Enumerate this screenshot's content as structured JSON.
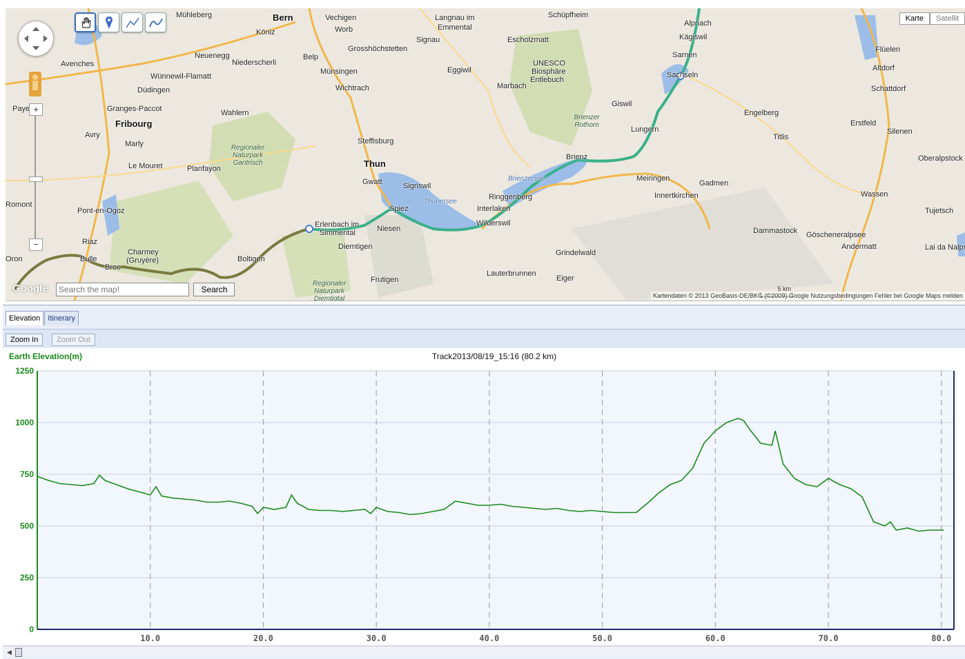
{
  "map": {
    "places": [
      {
        "t": "Bern",
        "cls": "big"
      },
      {
        "t": "Mühleberg"
      },
      {
        "t": "Vechigen"
      },
      {
        "t": "Worb"
      },
      {
        "t": "Köniz"
      },
      {
        "t": "Langnau im"
      },
      {
        "t": "Emmental"
      },
      {
        "t": "Schüpfheim"
      },
      {
        "t": "Alpnach"
      },
      {
        "t": "Kägiswil"
      },
      {
        "t": "Grosshöchstetten"
      },
      {
        "t": "Signau"
      },
      {
        "t": "Escholzmatt"
      },
      {
        "t": "Sarnen"
      },
      {
        "t": "Sachseln"
      },
      {
        "t": "Flüelen"
      },
      {
        "t": "Altdorf"
      },
      {
        "t": "Avenches"
      },
      {
        "t": "Neuenegg"
      },
      {
        "t": "Niederscherli"
      },
      {
        "t": "Belp"
      },
      {
        "t": "Münsingen"
      },
      {
        "t": "Eggiwil"
      },
      {
        "t": "UNESCO"
      },
      {
        "t": "Biosphäre"
      },
      {
        "t": "Entlebuch"
      },
      {
        "t": "Wünnewil-Flamatt"
      },
      {
        "t": "Wichtrach"
      },
      {
        "t": "Marbach"
      },
      {
        "t": "Schattdorf"
      },
      {
        "t": "Düdingen"
      },
      {
        "t": "Giswil"
      },
      {
        "t": "Granges-Paccot"
      },
      {
        "t": "Wahlern"
      },
      {
        "t": "Engelberg"
      },
      {
        "t": "Payerne"
      },
      {
        "t": "Fribourg",
        "cls": "big"
      },
      {
        "t": "Lungern"
      },
      {
        "t": "Erstfeld"
      },
      {
        "t": "Avry"
      },
      {
        "t": "Steffisburg"
      },
      {
        "t": "Titlis"
      },
      {
        "t": "Silenen"
      },
      {
        "t": "Marly"
      },
      {
        "t": "Le Mouret"
      },
      {
        "t": "Planfayon"
      },
      {
        "t": "Thun",
        "cls": "big"
      },
      {
        "t": "Brienz"
      },
      {
        "t": "Oberalpstock"
      },
      {
        "t": "Gwatt"
      },
      {
        "t": "Sigriswil"
      },
      {
        "t": "Meiringen"
      },
      {
        "t": "Gadmen"
      },
      {
        "t": "Ringgenberg"
      },
      {
        "t": "Innertkirchen"
      },
      {
        "t": "Wassen"
      },
      {
        "t": "Romont"
      },
      {
        "t": "Spiez"
      },
      {
        "t": "Interlaken"
      },
      {
        "t": "Pont-en-Ogoz"
      },
      {
        "t": "Erlenbach im"
      },
      {
        "t": "Simmental"
      },
      {
        "t": "Wilderswil"
      },
      {
        "t": "Tujetsch"
      },
      {
        "t": "Niesen"
      },
      {
        "t": "Dammastock"
      },
      {
        "t": "Riaz"
      },
      {
        "t": "Diemtigen"
      },
      {
        "t": "Göscheneralpsee"
      },
      {
        "t": "Andermatt"
      },
      {
        "t": "Charmey"
      },
      {
        "t": "(Gruyère)"
      },
      {
        "t": "Bulle"
      },
      {
        "t": "Broc"
      },
      {
        "t": "Boltigen"
      },
      {
        "t": "Grindelwald"
      },
      {
        "t": "Lai da Nalps"
      },
      {
        "t": "Frutigen"
      },
      {
        "t": "Lauterbrunnen"
      },
      {
        "t": "Eiger"
      },
      {
        "t": "Oron"
      },
      {
        "t": "Regionaler Naturpark Gantrisch",
        "cls": "park"
      },
      {
        "t": "Regionaler Naturpark Diemtigtal",
        "cls": "park"
      },
      {
        "t": "Brienzer Rothorn",
        "cls": "park"
      },
      {
        "t": "Thunersee",
        "cls": "lake"
      },
      {
        "t": "Brienzersee",
        "cls": "lake"
      }
    ],
    "maptype_map": "Karte",
    "maptype_sat": "Satellit",
    "search_placeholder": "Search the map!",
    "search_button": "Search",
    "scale_label": "5 km",
    "attribution": "Kartendaten © 2013 GeoBasis-DE/BKG (©2009) Google   Nutzungsbedingungen   Fehler bei Google Maps melden",
    "google_logo": "Google",
    "zoom_in": "+",
    "zoom_out": "−"
  },
  "panel": {
    "tabs": [
      "Elevation",
      "Itinerary"
    ],
    "zoom_in": "Zoom In",
    "zoom_out": "Zoom Out"
  },
  "colors": {
    "elevation": "#1a8a1a",
    "axis": "#1a8a1a",
    "route_old": "#7a7a40",
    "route_new": "#3ab08a",
    "plot_bg": "#f2f6fd"
  },
  "chart_data": {
    "type": "line",
    "title": "Track2013/08/19_15:16 (80.2 km)",
    "ylabel": "Earth Elevation(m)",
    "xlabel": "",
    "xlim": [
      0,
      80.2
    ],
    "ylim": [
      0,
      1250
    ],
    "xticks": [
      10,
      20,
      30,
      40,
      50,
      60,
      70,
      80
    ],
    "xtick_labels": [
      "10.0",
      "20.0",
      "30.0",
      "40.0",
      "50.0",
      "60.0",
      "70.0",
      "80.0"
    ],
    "yticks": [
      0,
      250,
      500,
      750,
      1000,
      1250
    ],
    "ytick_labels": [
      "0",
      "250",
      "500",
      "750",
      "1000",
      "1250"
    ],
    "grid": true,
    "series": [
      {
        "name": "",
        "x": [
          0,
          1,
          2,
          3,
          4,
          5,
          5.5,
          6,
          7,
          8,
          9,
          10,
          10.5,
          11,
          12,
          13,
          14,
          15,
          16,
          17,
          18,
          19,
          19.5,
          20,
          21,
          22,
          22.5,
          23,
          24,
          25,
          26,
          27,
          28,
          29,
          29.5,
          30,
          31,
          32,
          33,
          34,
          35,
          36,
          37,
          38,
          39,
          40,
          41,
          42,
          43,
          44,
          45,
          46,
          47,
          48,
          49,
          50,
          51,
          52,
          53,
          54,
          55,
          56,
          57,
          58,
          59,
          60,
          61,
          62,
          62.5,
          63,
          64,
          65,
          65.3,
          66,
          67,
          68,
          69,
          70,
          71,
          72,
          73,
          74,
          75,
          75.5,
          76,
          77,
          78,
          79,
          80.2
        ],
        "y": [
          740,
          720,
          705,
          700,
          695,
          705,
          745,
          720,
          700,
          680,
          665,
          650,
          690,
          645,
          635,
          630,
          625,
          615,
          615,
          620,
          610,
          595,
          560,
          590,
          580,
          590,
          650,
          610,
          580,
          575,
          575,
          570,
          575,
          580,
          560,
          590,
          570,
          565,
          555,
          560,
          570,
          580,
          620,
          610,
          600,
          600,
          605,
          595,
          590,
          585,
          580,
          585,
          575,
          570,
          575,
          570,
          565,
          565,
          565,
          610,
          660,
          700,
          720,
          780,
          900,
          960,
          1000,
          1020,
          1010,
          970,
          900,
          890,
          960,
          800,
          730,
          700,
          690,
          730,
          700,
          680,
          640,
          520,
          500,
          520,
          480,
          490,
          475,
          480,
          480
        ]
      }
    ]
  }
}
